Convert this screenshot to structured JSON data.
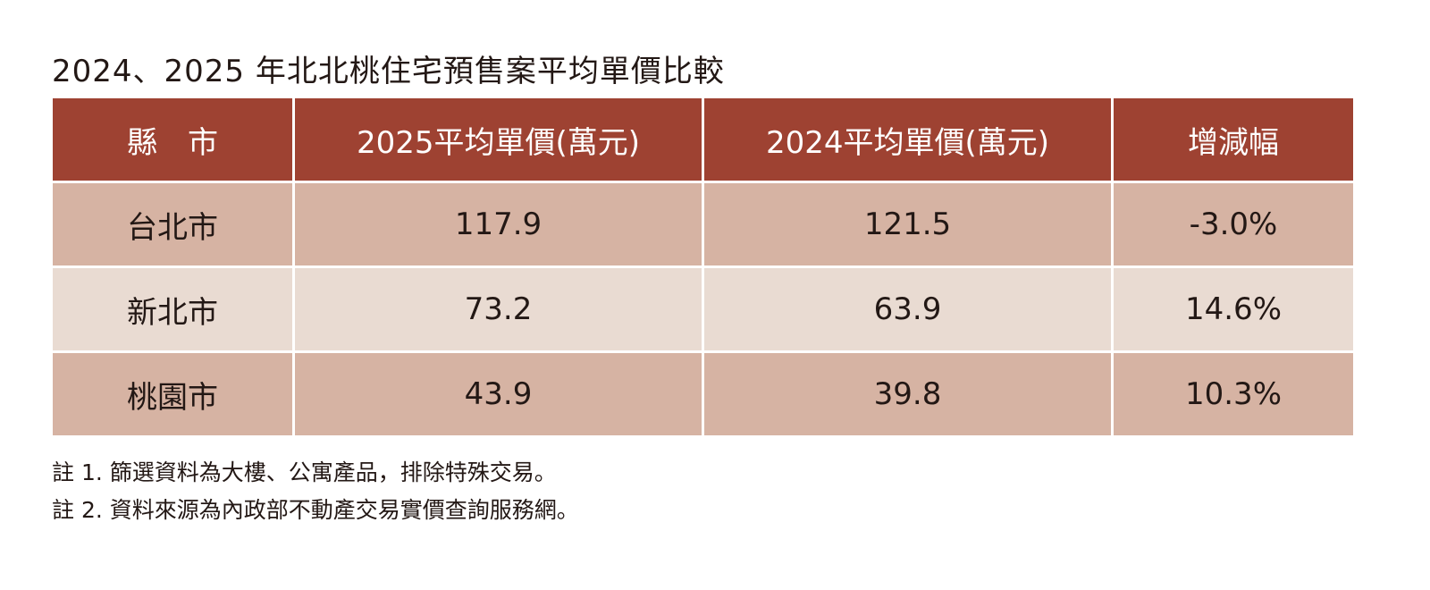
{
  "title": "2024、2025 年北北桃住宅預售案平均單價比較",
  "chart_data": {
    "type": "table",
    "columns": [
      "縣　市",
      "2025平均單價(萬元)",
      "2024平均單價(萬元)",
      "增減幅"
    ],
    "rows": [
      [
        "台北市",
        "117.9",
        "121.5",
        "-3.0%"
      ],
      [
        "新北市",
        "73.2",
        "63.9",
        "14.6%"
      ],
      [
        "桃園市",
        "43.9",
        "39.8",
        "10.3%"
      ]
    ],
    "colors": {
      "header": "#9e4232",
      "row_dark": "#d6b3a3",
      "row_light": "#e9dbd2"
    }
  },
  "notes": [
    "註 1. 篩選資料為大樓、公寓產品，排除特殊交易。",
    "註 2. 資料來源為內政部不動產交易實價查詢服務網。"
  ]
}
